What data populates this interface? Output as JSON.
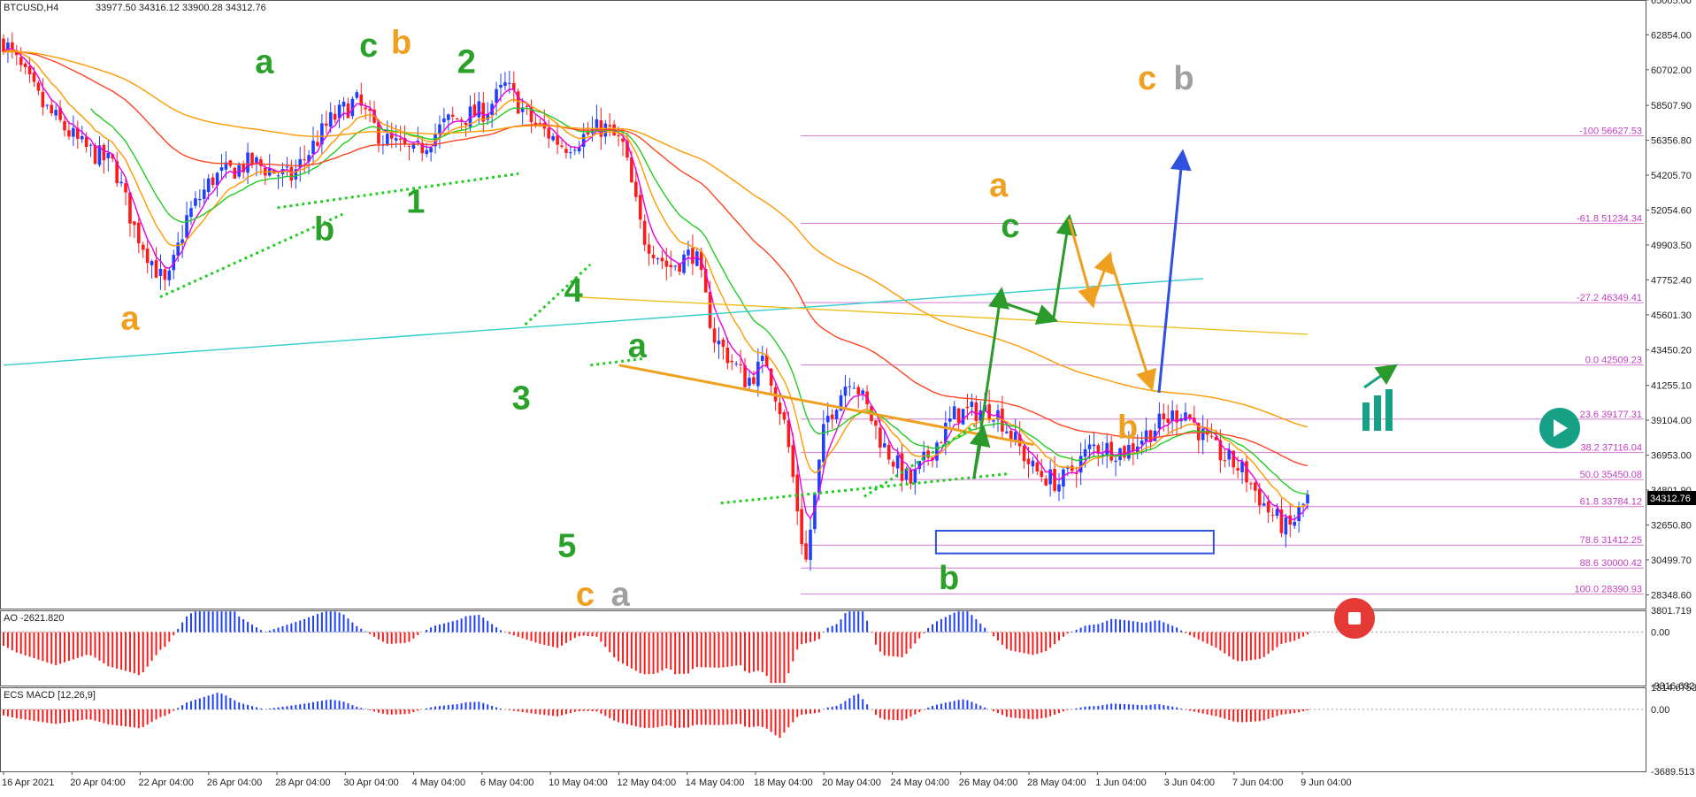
{
  "header": {
    "symbol_label": "BTCUSD,H4",
    "ohlc_label": "33977.50 34316.12 33900.28 34312.76"
  },
  "current_price_label": "34312.76",
  "colors": {
    "bull_candle": "#1f3fff",
    "bear_candle": "#ff1a1a",
    "neutral_candle": "#9a9a9a",
    "fib": "#d67ad6",
    "ema_fast": "#e600e6",
    "ema_mid": "#ff9900",
    "ema_green": "#22cc22",
    "ema_cyan": "#33cccc",
    "ema_red": "#ff4422",
    "ema_yellow": "#f0c020",
    "wave_green": "#2aa22a",
    "wave_orange": "#f0a020",
    "wave_gray": "#a0a0a0",
    "projection_green": "#2a9a2a",
    "projection_orange": "#f0a020",
    "projection_blue": "#3050e0"
  },
  "chart_data": {
    "type": "candlestick",
    "symbol": "BTCUSD",
    "timeframe": "H4",
    "ylim": [
      27500,
      65000
    ],
    "y_tick_labels": [
      "65005.00",
      "62854.00",
      "60702.00",
      "58507.90",
      "56356.80",
      "54205.70",
      "52054.60",
      "49903.50",
      "47752.40",
      "45601.30",
      "43450.20",
      "41255.10",
      "39104.00",
      "36953.00",
      "34801.90",
      "32650.80",
      "30499.70",
      "28348.60"
    ],
    "x_tick_labels": [
      "16 Apr 2021",
      "20 Apr 04:00",
      "22 Apr 04:00",
      "26 Apr 04:00",
      "28 Apr 04:00",
      "30 Apr 04:00",
      "4 May 04:00",
      "6 May 04:00",
      "10 May 04:00",
      "12 May 04:00",
      "14 May 04:00",
      "18 May 04:00",
      "20 May 04:00",
      "24 May 04:00",
      "26 May 04:00",
      "28 May 04:00",
      "1 Jun 04:00",
      "3 Jun 04:00",
      "7 Jun 04:00",
      "9 Jun 04:00"
    ],
    "price_path": [
      [
        0,
        62500
      ],
      [
        0.03,
        58500
      ],
      [
        0.06,
        56000
      ],
      [
        0.085,
        54800
      ],
      [
        0.1,
        51000
      ],
      [
        0.125,
        47200
      ],
      [
        0.14,
        51500
      ],
      [
        0.16,
        54000
      ],
      [
        0.19,
        55000
      ],
      [
        0.22,
        54000
      ],
      [
        0.25,
        57500
      ],
      [
        0.27,
        58800
      ],
      [
        0.29,
        56500
      ],
      [
        0.315,
        55500
      ],
      [
        0.34,
        57500
      ],
      [
        0.37,
        58200
      ],
      [
        0.385,
        59700
      ],
      [
        0.405,
        57500
      ],
      [
        0.43,
        56000
      ],
      [
        0.46,
        57200
      ],
      [
        0.475,
        56000
      ],
      [
        0.49,
        50500
      ],
      [
        0.51,
        48500
      ],
      [
        0.53,
        49500
      ],
      [
        0.545,
        44200
      ],
      [
        0.57,
        41500
      ],
      [
        0.585,
        42800
      ],
      [
        0.6,
        38500
      ],
      [
        0.615,
        30200
      ],
      [
        0.63,
        39000
      ],
      [
        0.65,
        42000
      ],
      [
        0.675,
        37500
      ],
      [
        0.695,
        35200
      ],
      [
        0.73,
        39500
      ],
      [
        0.76,
        39800
      ],
      [
        0.79,
        36000
      ],
      [
        0.81,
        35200
      ],
      [
        0.835,
        37500
      ],
      [
        0.86,
        37200
      ],
      [
        0.885,
        38800
      ],
      [
        0.905,
        39800
      ],
      [
        0.925,
        37500
      ],
      [
        0.95,
        36000
      ],
      [
        0.97,
        33500
      ],
      [
        0.985,
        32300
      ],
      [
        1.0,
        34300
      ]
    ],
    "fib_levels": [
      {
        "label": "-100",
        "value": 56627.53
      },
      {
        "label": "-61.8",
        "value": 51234.34
      },
      {
        "label": "-27.2",
        "value": 46349.41
      },
      {
        "label": "0.0",
        "value": 42509.23
      },
      {
        "label": "23.6",
        "value": 39177.31
      },
      {
        "label": "38.2",
        "value": 37116.04
      },
      {
        "label": "50.0",
        "value": 35450.08
      },
      {
        "label": "61.8",
        "value": 33784.12
      },
      {
        "label": "78.6",
        "value": 31412.25
      },
      {
        "label": "88.6",
        "value": 30000.42
      },
      {
        "label": "100.0",
        "value": 28390.93
      }
    ],
    "wave_labels": [
      {
        "text": "a",
        "color": "green",
        "x": 0.2,
        "y": 60500
      },
      {
        "text": "c",
        "color": "green",
        "x": 0.28,
        "y": 61500
      },
      {
        "text": "b",
        "color": "orange",
        "x": 0.305,
        "y": 61700
      },
      {
        "text": "2",
        "color": "green",
        "x": 0.355,
        "y": 60500
      },
      {
        "text": "b",
        "color": "green",
        "x": 0.246,
        "y": 50200
      },
      {
        "text": "1",
        "color": "green",
        "x": 0.316,
        "y": 51900
      },
      {
        "text": "a",
        "color": "orange",
        "x": 0.097,
        "y": 44700
      },
      {
        "text": "4",
        "color": "green",
        "x": 0.437,
        "y": 46400
      },
      {
        "text": "a",
        "color": "green",
        "x": 0.486,
        "y": 43000
      },
      {
        "text": "3",
        "color": "green",
        "x": 0.397,
        "y": 39800
      },
      {
        "text": "5",
        "color": "green",
        "x": 0.432,
        "y": 30700
      },
      {
        "text": "c",
        "color": "orange",
        "x": 0.446,
        "y": 27700
      },
      {
        "text": "a",
        "color": "gray",
        "x": 0.473,
        "y": 27700
      },
      {
        "text": "b",
        "color": "green",
        "x": 0.725,
        "y": 28700
      },
      {
        "text": "a",
        "color": "orange",
        "x": 0.763,
        "y": 52900
      },
      {
        "text": "c",
        "color": "green",
        "x": 0.772,
        "y": 50400
      },
      {
        "text": "c",
        "color": "orange",
        "x": 0.877,
        "y": 59500
      },
      {
        "text": "b",
        "color": "gray",
        "x": 0.905,
        "y": 59500
      },
      {
        "text": "b",
        "color": "orange",
        "x": 0.862,
        "y": 38000
      }
    ],
    "projections": [
      {
        "color": "green",
        "points": [
          [
            0.744,
            35500
          ],
          [
            0.751,
            38500
          ]
        ]
      },
      {
        "color": "green",
        "points": [
          [
            0.744,
            35500
          ],
          [
            0.765,
            47000
          ]
        ]
      },
      {
        "color": "green",
        "points": [
          [
            0.768,
            46300
          ],
          [
            0.805,
            45300
          ]
        ]
      },
      {
        "color": "green",
        "points": [
          [
            0.805,
            45300
          ],
          [
            0.817,
            51500
          ]
        ]
      },
      {
        "color": "orange",
        "points": [
          [
            0.817,
            51500
          ],
          [
            0.835,
            46300
          ]
        ]
      },
      {
        "color": "orange",
        "points": [
          [
            0.835,
            46300
          ],
          [
            0.848,
            49200
          ]
        ]
      },
      {
        "color": "orange",
        "points": [
          [
            0.848,
            49200
          ],
          [
            0.88,
            41200
          ]
        ]
      },
      {
        "color": "blue",
        "points": [
          [
            0.886,
            40800
          ],
          [
            0.904,
            55500
          ]
        ]
      }
    ],
    "trendline": {
      "color": "orange",
      "points": [
        [
          0.472,
          42500
        ],
        [
          0.79,
          37600
        ]
      ]
    },
    "support_box": {
      "x0": 0.715,
      "x1": 0.928,
      "y0": 32300,
      "y1": 30900
    },
    "indicators": [
      {
        "name": "AO -2621.820",
        "ylim": [
          -9316.632,
          3801.719
        ],
        "tick_labels": [
          "3801.719",
          "0.00",
          "-9316.632"
        ]
      },
      {
        "name": "ECS MACD [12,26,9]",
        "ylim": [
          -3689.513,
          1314.6753
        ],
        "tick_labels": [
          "1314.6753",
          "0.00",
          "-3689.513"
        ]
      }
    ]
  }
}
